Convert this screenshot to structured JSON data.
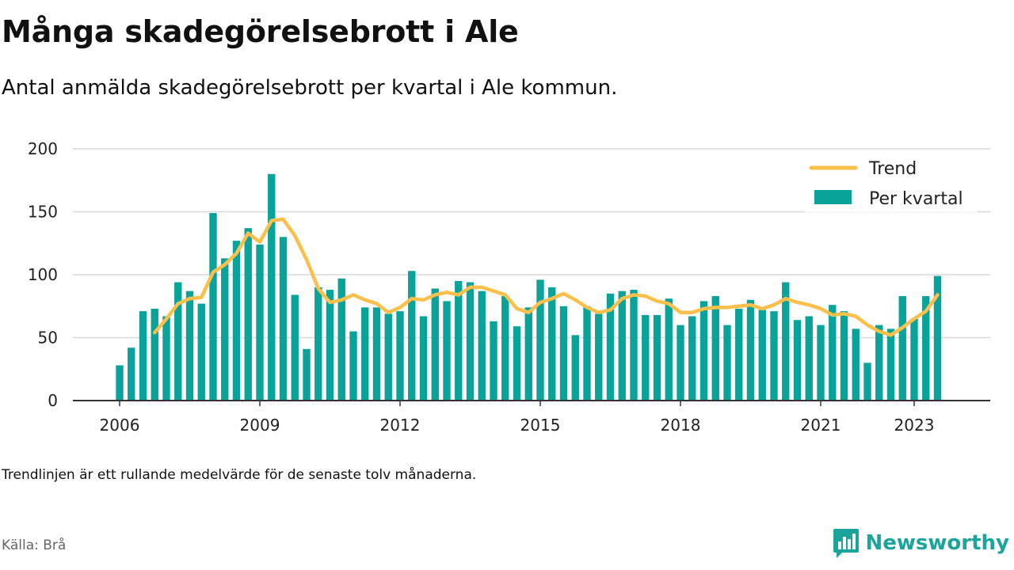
{
  "title": "Många skadegörelsebrott i Ale",
  "subtitle": "Antal anmälda skadegörelsebrott per kvartal i Ale kommun.",
  "note": "Trendlinjen är ett rullande medelvärde för de senaste tolv månaderna.",
  "source": "Källa: Brå",
  "brand": {
    "name": "Newsworthy",
    "icon": "newsworthy-chart-logo-icon"
  },
  "colors": {
    "bars": "#0aa39a",
    "trend": "#fbc04b",
    "brand": "#1aa59c",
    "grid": "#d9d9d9",
    "axis": "#333333"
  },
  "chart_data": {
    "type": "bar",
    "x_start": "2006 Q1",
    "x_unit": "quarter",
    "ylim": [
      0,
      200
    ],
    "yticks": [
      0,
      50,
      100,
      150,
      200
    ],
    "xticks": [
      "2006",
      "2009",
      "2012",
      "2015",
      "2018",
      "2021",
      "2023"
    ],
    "grid": true,
    "legend_position": "top-right",
    "series": [
      {
        "name": "Per kvartal",
        "type": "bar",
        "values": [
          28,
          42,
          71,
          73,
          67,
          94,
          87,
          77,
          149,
          113,
          127,
          137,
          124,
          180,
          130,
          84,
          41,
          90,
          88,
          97,
          55,
          74,
          74,
          69,
          71,
          103,
          67,
          89,
          79,
          95,
          94,
          87,
          63,
          83,
          59,
          74,
          96,
          90,
          75,
          52,
          75,
          69,
          85,
          87,
          88,
          68,
          68,
          81,
          60,
          67,
          79,
          83,
          60,
          73,
          80,
          72,
          71,
          94,
          64,
          67,
          60,
          76,
          71,
          57,
          30,
          60,
          57,
          83,
          65,
          83,
          99
        ]
      },
      {
        "name": "Trend",
        "type": "line",
        "start_quarter_index": 3,
        "values": [
          54,
          65,
          77,
          81,
          82,
          102,
          108,
          117,
          133,
          126,
          143,
          144,
          131,
          112,
          89,
          78,
          80,
          84,
          80,
          77,
          70,
          74,
          81,
          80,
          84,
          86,
          84,
          90,
          90,
          87,
          84,
          73,
          70,
          78,
          81,
          85,
          80,
          74,
          70,
          72,
          81,
          84,
          83,
          79,
          77,
          70,
          70,
          73,
          74,
          74,
          75,
          76,
          73,
          76,
          81,
          78,
          76,
          73,
          68,
          69,
          67,
          60,
          55,
          52,
          58,
          65,
          71,
          84
        ]
      }
    ]
  }
}
